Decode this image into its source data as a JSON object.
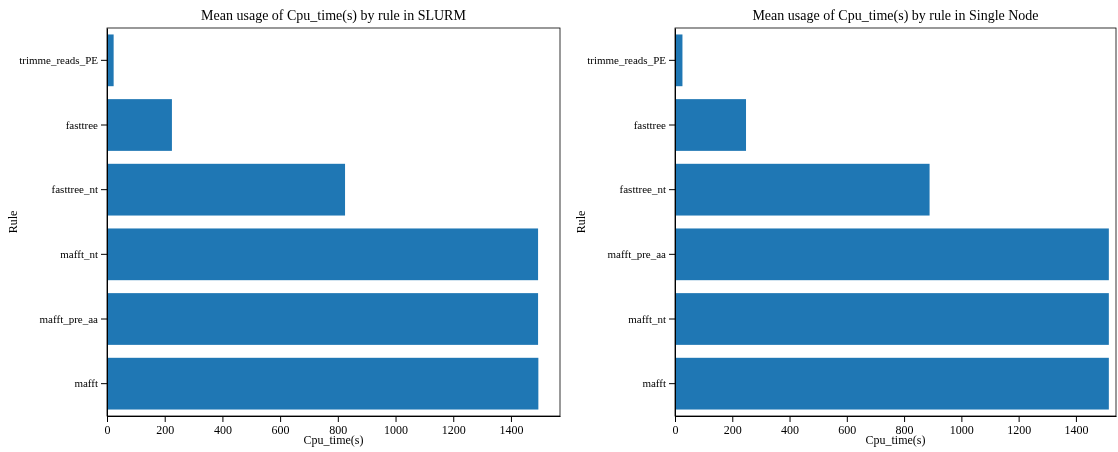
{
  "chart_data": [
    {
      "type": "bar",
      "orientation": "horizontal",
      "title": "Mean usage of Cpu_time(s) by rule in SLURM",
      "xlabel": "Cpu_time(s)",
      "ylabel": "Rule",
      "categories": [
        "trimme_reads_PE",
        "fasttree",
        "fasttree_nt",
        "mafft_nt",
        "mafft_pre_aa",
        "mafft"
      ],
      "values": [
        23,
        225,
        825,
        1494,
        1494,
        1495
      ],
      "color": "#1f77b4",
      "xlim": [
        0,
        1570
      ],
      "xticks": [
        0,
        200,
        400,
        600,
        800,
        1000,
        1200,
        1400
      ],
      "grid": false
    },
    {
      "type": "bar",
      "orientation": "horizontal",
      "title": "Mean usage of Cpu_time(s) by rule in Single Node",
      "xlabel": "Cpu_time(s)",
      "ylabel": "Rule",
      "categories": [
        "trimme_reads_PE",
        "fasttree",
        "fasttree_nt",
        "mafft_pre_aa",
        "mafft_nt",
        "mafft"
      ],
      "values": [
        26,
        248,
        889,
        1515,
        1515,
        1515
      ],
      "color": "#1f77b4",
      "xlim": [
        0,
        1540
      ],
      "xticks": [
        0,
        200,
        400,
        600,
        800,
        1000,
        1200,
        1400
      ],
      "grid": false
    }
  ]
}
